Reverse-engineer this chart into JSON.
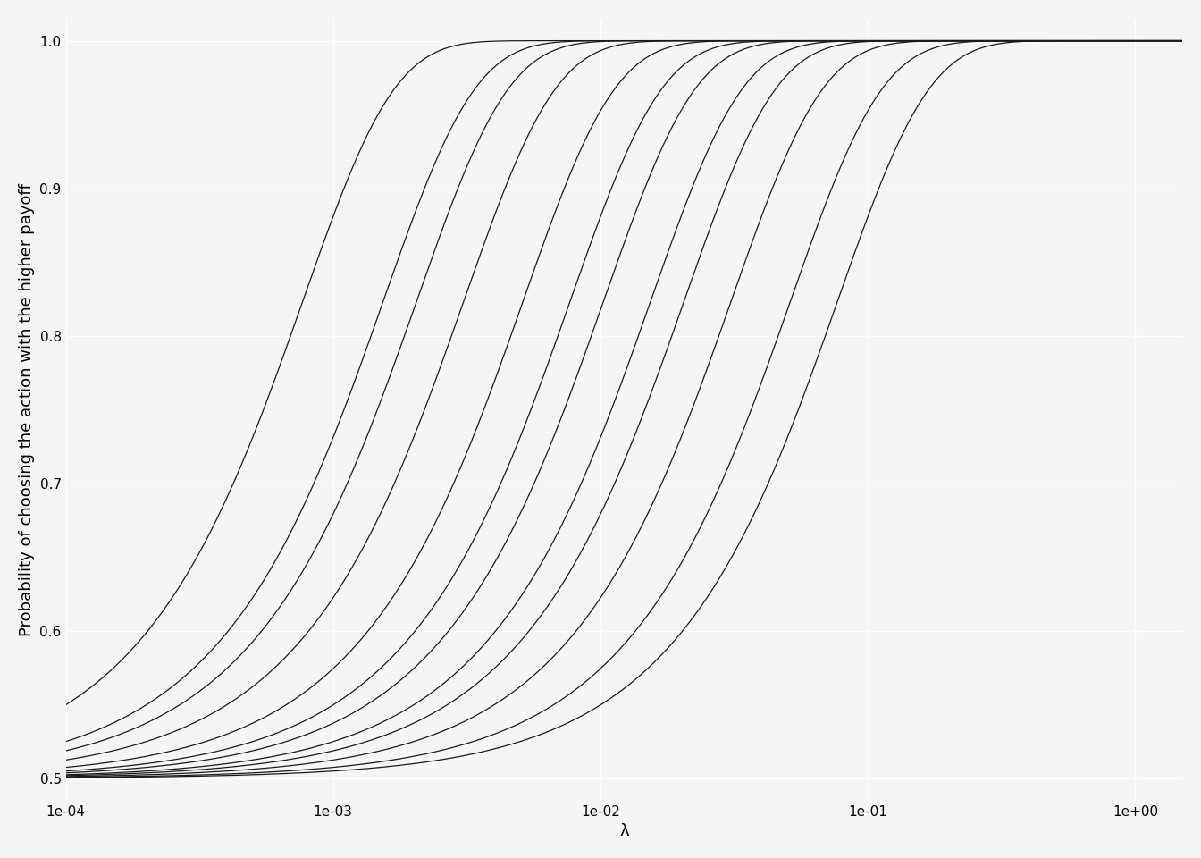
{
  "xlabel": "λ",
  "ylabel": "Probability of choosing the action with the higher payoff",
  "lambda_min": 0.0001,
  "lambda_max": 1.5,
  "n_points": 2000,
  "payoff_diffs": [
    20,
    30,
    50,
    75,
    100,
    150,
    200,
    300,
    500,
    750,
    1000,
    2000
  ],
  "ylim": [
    0.485,
    1.015
  ],
  "xlim": [
    0.0001,
    1.5
  ],
  "line_color": "#1a1a1a",
  "line_width": 0.9,
  "background_color": "#f5f5f5",
  "grid_color": "#ffffff",
  "grid_linewidth": 0.9,
  "tick_label_size": 11,
  "axis_label_size": 13,
  "yticks": [
    0.5,
    0.6,
    0.7,
    0.8,
    0.9,
    1.0
  ],
  "xtick_positions": [
    0.0001,
    0.001,
    0.01,
    0.1,
    1.0
  ],
  "xtick_labels": [
    "1e-04",
    "1e-03",
    "1e-02",
    "1e-01",
    "1e+00"
  ]
}
